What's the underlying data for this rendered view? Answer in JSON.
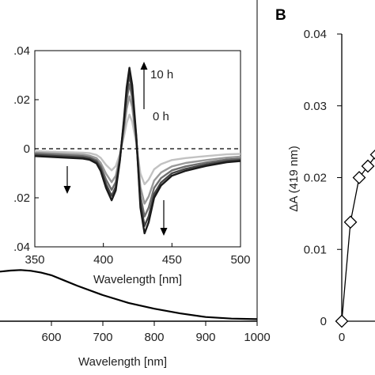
{
  "panel_b_label": "B",
  "chart_data": [
    {
      "type": "line",
      "panel": "A (outer, partially visible)",
      "xlabel": "Wavelength [nm]",
      "xlim": [
        500,
        1000
      ],
      "x_ticks": [
        600,
        700,
        800,
        900,
        1000
      ],
      "x_tick_labels": [
        "600",
        "700",
        "800",
        "900",
        "1000"
      ],
      "series": [
        {
          "x": [
            500,
            520,
            540,
            560,
            580,
            600,
            620,
            650,
            700,
            750,
            800,
            850,
            900,
            950,
            1000
          ],
          "y": [
            0.95,
            0.97,
            0.98,
            0.965,
            0.93,
            0.88,
            0.8,
            0.68,
            0.5,
            0.35,
            0.24,
            0.15,
            0.08,
            0.05,
            0.04
          ]
        }
      ]
    },
    {
      "type": "line",
      "panel": "A inset",
      "xlabel": "Wavelength [nm]",
      "xlim": [
        350,
        500
      ],
      "ylim": [
        -0.04,
        0.04
      ],
      "x_ticks": [
        350,
        400,
        450,
        500
      ],
      "x_tick_labels": [
        "350",
        "400",
        "450",
        "500"
      ],
      "y_ticks": [
        -0.04,
        -0.02,
        0,
        0.02,
        0.04
      ],
      "y_tick_labels": [
        ".04",
        ".02",
        "0",
        ".02",
        ".04"
      ],
      "annotations": {
        "top": "10 h",
        "bottom": "0 h"
      },
      "x": [
        350,
        385,
        390,
        395,
        398,
        402,
        406,
        409,
        412,
        415,
        417,
        419,
        421,
        424,
        427,
        430,
        433,
        437,
        442,
        450,
        460,
        475,
        490,
        500
      ],
      "series": [
        {
          "y": [
            -0.003,
            -0.004,
            -0.0045,
            -0.006,
            -0.009,
            -0.016,
            -0.021,
            -0.017,
            -0.005,
            0.012,
            0.025,
            0.033,
            0.026,
            0.005,
            -0.024,
            -0.0345,
            -0.03,
            -0.02,
            -0.015,
            -0.011,
            -0.009,
            -0.007,
            -0.0055,
            -0.005
          ]
        },
        {
          "y": [
            -0.0025,
            -0.0035,
            -0.004,
            -0.0053,
            -0.008,
            -0.0145,
            -0.0192,
            -0.0155,
            -0.0045,
            0.011,
            0.0228,
            0.03,
            0.0236,
            0.0045,
            -0.022,
            -0.0315,
            -0.0275,
            -0.0185,
            -0.0138,
            -0.01,
            -0.0082,
            -0.0064,
            -0.005,
            -0.0046
          ]
        },
        {
          "y": [
            -0.002,
            -0.003,
            -0.0035,
            -0.0047,
            -0.007,
            -0.0126,
            -0.0168,
            -0.0136,
            -0.004,
            0.0096,
            0.02,
            0.0263,
            0.0208,
            0.004,
            -0.0192,
            -0.0276,
            -0.024,
            -0.016,
            -0.012,
            -0.0088,
            -0.0072,
            -0.0056,
            -0.0044,
            -0.004
          ]
        },
        {
          "y": [
            -0.0016,
            -0.0024,
            -0.0028,
            -0.0038,
            -0.0057,
            -0.0102,
            -0.0136,
            -0.011,
            -0.0032,
            0.0078,
            0.0162,
            0.0214,
            0.0169,
            0.0032,
            -0.0156,
            -0.0224,
            -0.0195,
            -0.013,
            -0.0097,
            -0.0072,
            -0.0058,
            -0.0046,
            -0.0036,
            -0.0032
          ]
        },
        {
          "y": [
            -0.001,
            -0.0016,
            -0.0018,
            -0.0025,
            -0.0037,
            -0.0066,
            -0.0088,
            -0.0071,
            -0.0021,
            0.005,
            0.0105,
            0.0139,
            0.011,
            0.0021,
            -0.0101,
            -0.0145,
            -0.0126,
            -0.0084,
            -0.0063,
            -0.0046,
            -0.0038,
            -0.003,
            -0.0023,
            -0.0021
          ]
        }
      ],
      "series_colors": [
        "#1a1a1a",
        "#444444",
        "#6e6e6e",
        "#999999",
        "#c2c2c2"
      ]
    },
    {
      "type": "scatter",
      "panel": "B",
      "ylabel": "ΔA (419 nm)",
      "ylim": [
        0,
        0.04
      ],
      "y_ticks": [
        0,
        0.01,
        0.02,
        0.03,
        0.04
      ],
      "y_tick_labels": [
        "0",
        "0.01",
        "0.02",
        "0.03",
        "0.04"
      ],
      "x_tick_labels": [
        "0"
      ],
      "x": [
        0,
        1,
        2,
        3,
        4
      ],
      "y": [
        0,
        0.0138,
        0.02,
        0.0216,
        0.0232
      ]
    }
  ]
}
